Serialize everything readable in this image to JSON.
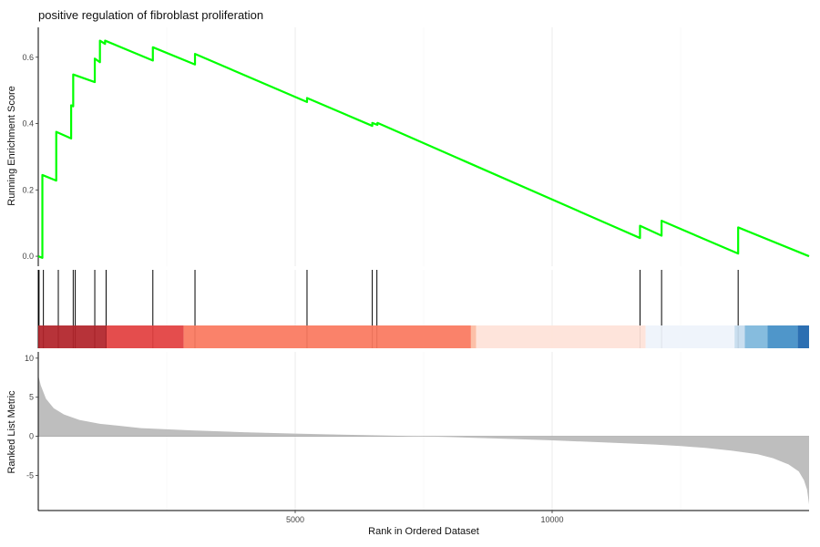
{
  "chart_data": {
    "type": "line",
    "title": "positive regulation of fibroblast proliferation",
    "xlabel": "Rank in Ordered Dataset",
    "xlim": [
      0,
      15000
    ],
    "x_ticks": [
      5000,
      10000
    ],
    "x_tick_labels": [
      "5000",
      "10000"
    ],
    "panels": {
      "running_enrichment": {
        "ylabel": "Running Enrichment Score",
        "ylim": [
          -0.03,
          0.69
        ],
        "y_ticks": [
          0.0,
          0.2,
          0.4,
          0.6
        ],
        "y_tick_labels": [
          "0.0",
          "0.2",
          "0.4",
          "0.6"
        ],
        "line_color": "#00ff00",
        "x": [
          0,
          80,
          80,
          350,
          350,
          640,
          640,
          680,
          680,
          1100,
          1100,
          1200,
          1200,
          1300,
          1300,
          2230,
          2230,
          3050,
          3050,
          5230,
          5230,
          6500,
          6500,
          6600,
          6600,
          11710,
          11710,
          12130,
          12130,
          13620,
          13620,
          15000
        ],
        "y": [
          0.0,
          -0.005,
          0.245,
          0.228,
          0.375,
          0.355,
          0.455,
          0.452,
          0.548,
          0.525,
          0.596,
          0.585,
          0.65,
          0.64,
          0.65,
          0.59,
          0.63,
          0.578,
          0.61,
          0.465,
          0.477,
          0.393,
          0.402,
          0.396,
          0.402,
          0.055,
          0.092,
          0.062,
          0.107,
          0.008,
          0.087,
          0.0
        ]
      },
      "hits": {
        "positions": [
          15,
          100,
          390,
          680,
          720,
          1100,
          1320,
          2230,
          3050,
          5230,
          6500,
          6590,
          11710,
          12130,
          13620
        ]
      },
      "color_bar": {
        "segments": [
          {
            "start": 0,
            "end": 1330,
            "color": "#b2232a"
          },
          {
            "start": 1330,
            "end": 2830,
            "color": "#e2403f"
          },
          {
            "start": 2830,
            "end": 8420,
            "color": "#fa785f"
          },
          {
            "start": 8420,
            "end": 8520,
            "color": "#fcbba1"
          },
          {
            "start": 8520,
            "end": 11820,
            "color": "#fee2d8"
          },
          {
            "start": 11820,
            "end": 13550,
            "color": "#eef3fb"
          },
          {
            "start": 13550,
            "end": 13750,
            "color": "#c5dbee"
          },
          {
            "start": 13750,
            "end": 14190,
            "color": "#7db7dc"
          },
          {
            "start": 14190,
            "end": 14780,
            "color": "#428ec6"
          },
          {
            "start": 14780,
            "end": 15000,
            "color": "#1c64ac"
          }
        ]
      },
      "ranked_metric": {
        "ylabel": "Ranked List Metric",
        "ylim": [
          -9.5,
          10.8
        ],
        "y_ticks": [
          -5,
          0,
          5,
          10
        ],
        "y_tick_labels": [
          "-5",
          "0",
          "5",
          "10"
        ],
        "fill_color": "#bebebe",
        "x": [
          0,
          50,
          150,
          300,
          500,
          800,
          1200,
          2000,
          3000,
          4000,
          5000,
          6000,
          7000,
          7200,
          7500,
          8000,
          9000,
          10000,
          11000,
          12000,
          12500,
          13000,
          13500,
          14000,
          14300,
          14600,
          14800,
          14900,
          14960,
          15000
        ],
        "values": [
          7.8,
          6.5,
          4.8,
          3.6,
          2.8,
          2.1,
          1.6,
          1.05,
          0.75,
          0.52,
          0.35,
          0.2,
          0.06,
          0.02,
          -0.02,
          -0.1,
          -0.3,
          -0.52,
          -0.78,
          -1.05,
          -1.25,
          -1.5,
          -1.85,
          -2.3,
          -2.8,
          -3.6,
          -4.5,
          -5.6,
          -6.8,
          -8.7
        ]
      }
    }
  }
}
